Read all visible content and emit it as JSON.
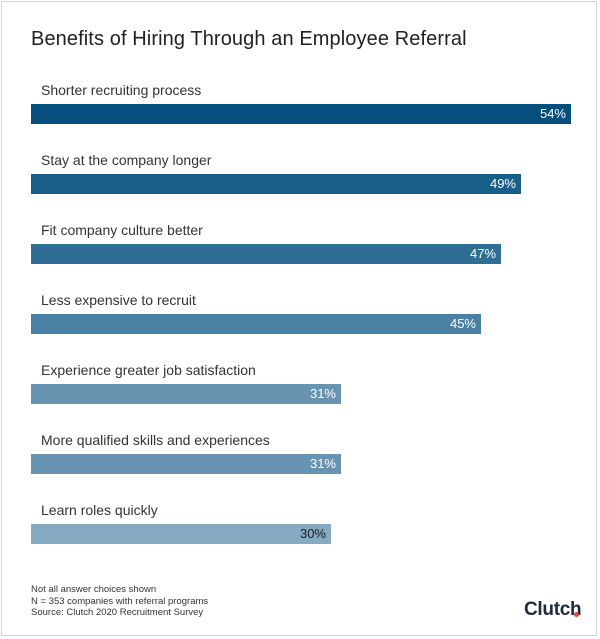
{
  "chart_data": {
    "type": "bar",
    "orientation": "horizontal",
    "title": "Benefits of Hiring Through an Employee Referral",
    "categories": [
      "Shorter recruiting process",
      "Stay at the company longer",
      "Fit company culture better",
      "Less expensive to recruit",
      "Experience greater job satisfaction",
      "More qualified skills and experiences",
      "Learn roles quickly"
    ],
    "values": [
      54,
      49,
      47,
      45,
      31,
      31,
      30
    ],
    "value_labels": [
      "54%",
      "49%",
      "47%",
      "45%",
      "31%",
      "31%",
      "30%"
    ],
    "unit": "%",
    "xlim": [
      0,
      54
    ],
    "grid": false,
    "legend": "none",
    "colors": [
      "#064e7c",
      "#175e89",
      "#2e6e95",
      "#4a80a3",
      "#6894b2",
      "#6894b2",
      "#86aac2"
    ]
  },
  "footnotes": [
    "Not all answer choices shown",
    "N = 353 companies with referral programs",
    "Source: Clutch 2020 Recruitment Survey"
  ],
  "brand": {
    "name": "Clutch",
    "dot_color": "#e0483e"
  }
}
